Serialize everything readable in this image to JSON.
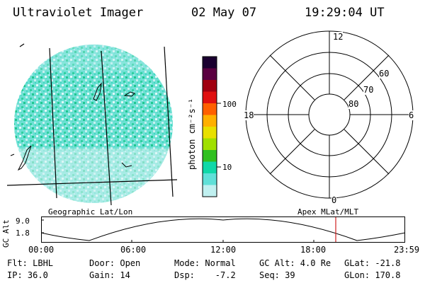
{
  "header": {
    "instrument": "Ultraviolet Imager",
    "date": "02 May 07",
    "time": "19:29:04 UT"
  },
  "colorbar": {
    "unit_label": "photon cm⁻²s⁻¹",
    "ticks": [
      "100",
      "10"
    ],
    "colors": [
      "#1a0030",
      "#5a0040",
      "#a00010",
      "#e01010",
      "#ff6000",
      "#ffb000",
      "#e8e000",
      "#a0e000",
      "#30c020",
      "#10d8a8",
      "#60e0d8",
      "#c0f0f0"
    ]
  },
  "polar": {
    "mlt_labels": {
      "top": "12",
      "left": "18",
      "right": "6",
      "bottom": "0"
    },
    "lat_labels": [
      "60",
      "70",
      "80"
    ]
  },
  "panel_labels": {
    "left": "Geographic Lat/Lon",
    "right": "Apex MLat/MLT"
  },
  "gc_alt_plot": {
    "axis_title": "GC Alt",
    "y_ticks": [
      "9.0",
      "1.8"
    ],
    "x_ticks": [
      "00:00",
      "06:00",
      "12:00",
      "18:00",
      "23:59"
    ],
    "marker_color": "#d02020"
  },
  "footer": {
    "row1": {
      "flt": "Flt: LBHL",
      "door": "Door: Open",
      "mode": "Mode: Normal",
      "gcalt": "GC Alt: 4.0 Re",
      "glat": "GLat: -21.8"
    },
    "row2": {
      "ip": "IP: 36.0",
      "gain": "Gain: 14",
      "dsp": "Dsp:    -7.2",
      "seq": "Seq: 39",
      "glon": "GLon: 170.8"
    }
  }
}
